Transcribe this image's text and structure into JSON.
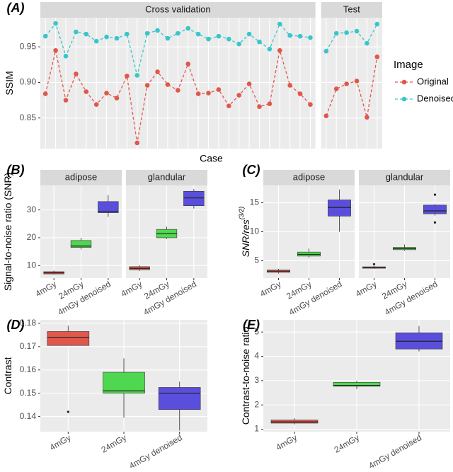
{
  "chart_data": [
    {
      "type": "line",
      "label": "(A)",
      "ylabel": "SSIM",
      "xlabel": "Case",
      "legend_title": "Image",
      "grid": true,
      "ylim": [
        0.807,
        0.991
      ],
      "yticks": [
        0.85,
        {
          "value": 0.9,
          "label": "0.90"
        },
        0.95
      ],
      "series": [
        {
          "name": "Original",
          "color": "#e0574c"
        },
        {
          "name": "Denoised",
          "color": "#38c6c9"
        }
      ],
      "facets": [
        {
          "title": "Cross validation",
          "categories": [
            null,
            null,
            null,
            null,
            null,
            null,
            null,
            null,
            null,
            null,
            null,
            null,
            null,
            null,
            null,
            null,
            null,
            null,
            null,
            null,
            null,
            null,
            null,
            null,
            null,
            null,
            null
          ],
          "series": [
            {
              "values": [
                0.884,
                0.945,
                0.875,
                0.912,
                0.887,
                0.869,
                0.885,
                0.878,
                0.909,
                0.815,
                0.896,
                0.915,
                0.897,
                0.889,
                0.926,
                0.884,
                0.885,
                0.89,
                0.867,
                0.882,
                0.898,
                0.866,
                0.87,
                0.945,
                0.896,
                0.884,
                0.869
              ]
            },
            {
              "values": [
                0.965,
                0.983,
                0.937,
                0.971,
                0.968,
                0.958,
                0.964,
                0.962,
                0.968,
                0.91,
                0.969,
                0.973,
                0.962,
                0.969,
                0.976,
                0.968,
                0.961,
                0.965,
                0.961,
                0.954,
                0.968,
                0.957,
                0.947,
                0.982,
                0.966,
                0.965,
                0.963
              ]
            }
          ]
        },
        {
          "title": "Test",
          "categories": [
            null,
            null,
            null,
            null,
            null,
            null
          ],
          "series": [
            {
              "values": [
                0.853,
                0.891,
                0.898,
                0.902,
                0.851,
                0.936
              ]
            },
            {
              "values": [
                0.944,
                0.969,
                0.97,
                0.972,
                0.955,
                0.982
              ]
            }
          ]
        }
      ]
    },
    {
      "type": "box",
      "label": "(B)",
      "ylabel": "Signal-to-noise ratio (SNR)",
      "grid": true,
      "ylim": [
        5.5,
        38.8
      ],
      "yticks": [
        10,
        20,
        30
      ],
      "categories": [
        "4mGy",
        "24mGy",
        "4mGy denoised"
      ],
      "colors": [
        "#e0574c",
        "#4fd84f",
        "#5a4fdc"
      ],
      "facets": [
        {
          "title": "adipose",
          "boxes": [
            {
              "min": 6.8,
              "q1": 7.0,
              "median": 7.4,
              "q3": 7.8,
              "max": 8.2,
              "outliers": []
            },
            {
              "min": 15.8,
              "q1": 16.5,
              "median": 17.0,
              "q3": 19.0,
              "max": 20.0,
              "outliers": []
            },
            {
              "min": 27.5,
              "q1": 29.0,
              "median": 29.3,
              "q3": 33.0,
              "max": 35.3,
              "outliers": []
            }
          ]
        },
        {
          "title": "glandular",
          "boxes": [
            {
              "min": 8.0,
              "q1": 8.5,
              "median": 9.0,
              "q3": 9.6,
              "max": 10.2,
              "outliers": []
            },
            {
              "min": 19.5,
              "q1": 20.0,
              "median": 21.5,
              "q3": 23.0,
              "max": 24.0,
              "outliers": []
            },
            {
              "min": 30.5,
              "q1": 31.5,
              "median": 34.3,
              "q3": 36.7,
              "max": 37.5,
              "outliers": []
            }
          ]
        }
      ]
    },
    {
      "type": "box",
      "label": "(C)",
      "ylabel": "SNR/res",
      "ylabel_sup": "(3/2)",
      "grid": true,
      "ylim": [
        2.0,
        18.0
      ],
      "yticks": [
        5,
        10,
        15
      ],
      "categories": [
        "4mGy",
        "24mGy",
        "4mGy denoised"
      ],
      "colors": [
        "#e0574c",
        "#4fd84f",
        "#5a4fdc"
      ],
      "facets": [
        {
          "title": "adipose",
          "boxes": [
            {
              "min": 2.8,
              "q1": 3.0,
              "median": 3.2,
              "q3": 3.4,
              "max": 3.6,
              "outliers": []
            },
            {
              "min": 5.5,
              "q1": 5.8,
              "median": 6.1,
              "q3": 6.5,
              "max": 7.1,
              "outliers": []
            },
            {
              "min": 10.0,
              "q1": 12.7,
              "median": 14.2,
              "q3": 15.5,
              "max": 17.3,
              "outliers": []
            }
          ]
        },
        {
          "title": "glandular",
          "boxes": [
            {
              "min": 3.6,
              "q1": 3.7,
              "median": 3.8,
              "q3": 3.95,
              "max": 4.1,
              "outliers": [
                4.4
              ]
            },
            {
              "min": 6.7,
              "q1": 6.9,
              "median": 7.1,
              "q3": 7.3,
              "max": 7.8,
              "outliers": []
            },
            {
              "min": 12.8,
              "q1": 13.1,
              "median": 13.6,
              "q3": 14.6,
              "max": 14.8,
              "outliers": [
                16.4,
                11.6
              ]
            }
          ]
        }
      ]
    },
    {
      "type": "box",
      "label": "(D)",
      "ylabel": "Contrast",
      "grid": true,
      "ylim": [
        0.1335,
        0.1815
      ],
      "yticks": [
        0.14,
        0.15,
        0.16,
        0.17,
        0.18
      ],
      "categories": [
        "4mGy",
        "24mGy",
        "4mGy denoised"
      ],
      "colors": [
        "#e0574c",
        "#4fd84f",
        "#5a4fdc"
      ],
      "boxes": [
        {
          "min": 0.1705,
          "q1": 0.1705,
          "median": 0.174,
          "q3": 0.1765,
          "max": 0.179,
          "outliers": [
            0.142
          ]
        },
        {
          "min": 0.1395,
          "q1": 0.15,
          "median": 0.151,
          "q3": 0.159,
          "max": 0.165,
          "outliers": []
        },
        {
          "min": 0.134,
          "q1": 0.143,
          "median": 0.15,
          "q3": 0.1525,
          "max": 0.155,
          "outliers": []
        }
      ]
    },
    {
      "type": "box",
      "label": "(E)",
      "ylabel": "Contrast-to-noise ratio",
      "grid": true,
      "ylim": [
        0.9,
        5.5
      ],
      "yticks": [
        1,
        2,
        3,
        4,
        5
      ],
      "categories": [
        "4mGy",
        "24mGy",
        "4mGy denoised"
      ],
      "colors": [
        "#e0574c",
        "#4fd84f",
        "#5a4fdc"
      ],
      "boxes": [
        {
          "min": 1.2,
          "q1": 1.25,
          "median": 1.3,
          "q3": 1.38,
          "max": 1.45,
          "outliers": []
        },
        {
          "min": 2.65,
          "q1": 2.77,
          "median": 2.8,
          "q3": 2.93,
          "max": 3.0,
          "outliers": []
        },
        {
          "min": 4.2,
          "q1": 4.3,
          "median": 4.62,
          "q3": 4.97,
          "max": 5.25,
          "outliers": []
        }
      ]
    }
  ]
}
